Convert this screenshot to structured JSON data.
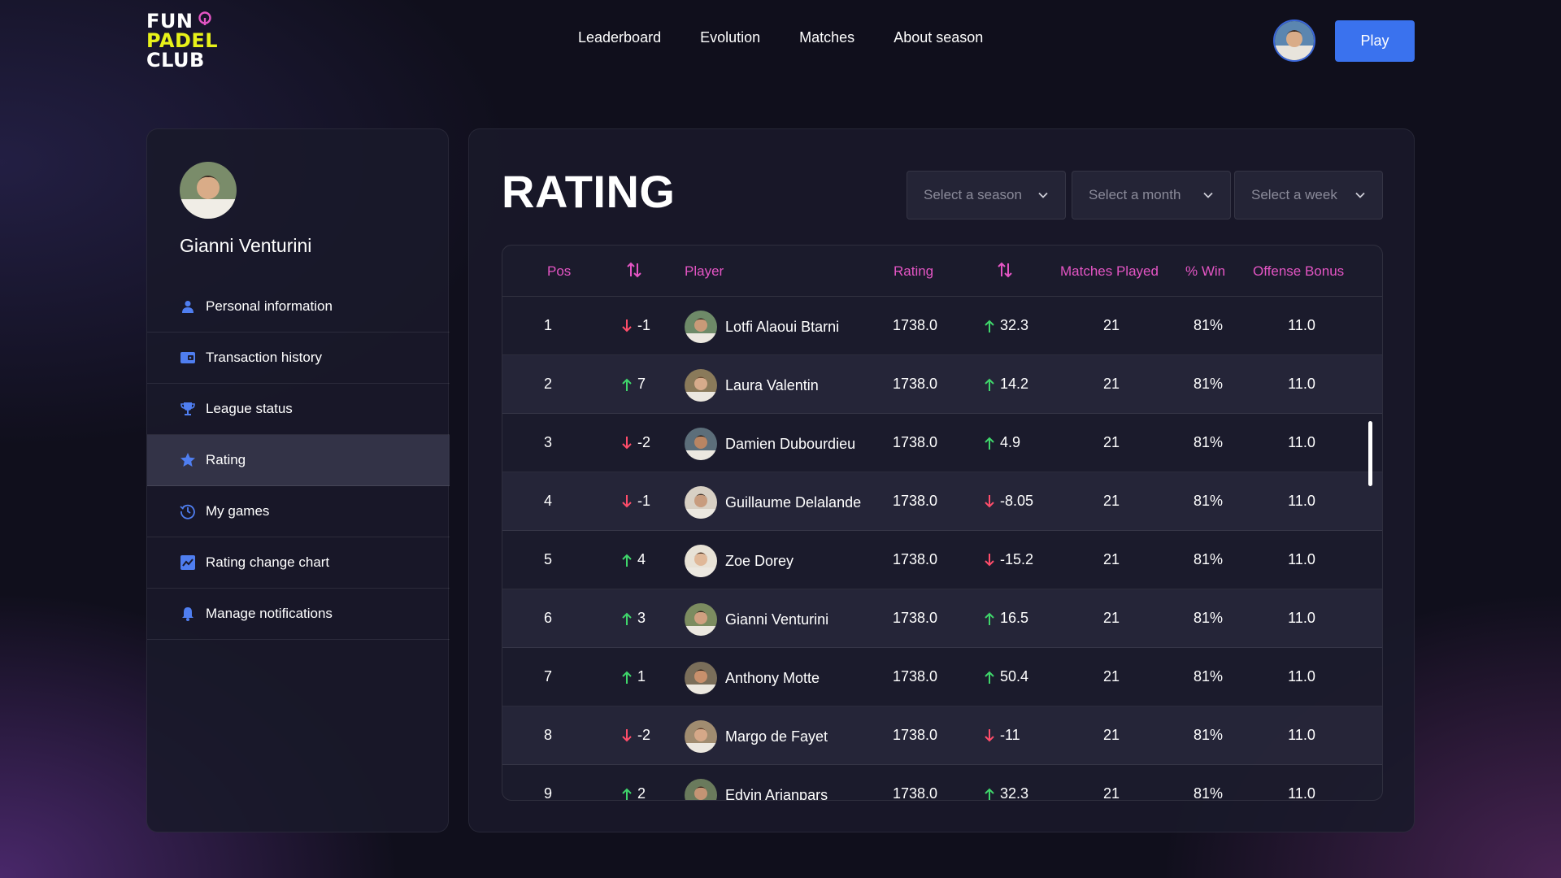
{
  "logo": {
    "line1": "FUN",
    "line2": "PADEL",
    "line3": "CLUB"
  },
  "nav": {
    "items": [
      "Leaderboard",
      "Evolution",
      "Matches",
      "About season"
    ]
  },
  "header": {
    "play_label": "Play"
  },
  "profile": {
    "name": "Gianni Venturini"
  },
  "menu": {
    "items": [
      {
        "label": "Personal information",
        "icon": "user-icon"
      },
      {
        "label": "Transaction history",
        "icon": "wallet-icon"
      },
      {
        "label": "League status",
        "icon": "trophy-icon"
      },
      {
        "label": "Rating",
        "icon": "star-badge-icon",
        "active": true
      },
      {
        "label": "My games",
        "icon": "history-icon"
      },
      {
        "label": "Rating change chart",
        "icon": "chart-icon"
      },
      {
        "label": "Manage notifications",
        "icon": "bell-icon"
      }
    ]
  },
  "page": {
    "title": "RATING"
  },
  "filters": {
    "season": "Select a season",
    "month": "Select a month",
    "week": "Select a week"
  },
  "table": {
    "headers": {
      "pos": "Pos",
      "player": "Player",
      "rating": "Rating",
      "matches": "Matches Played",
      "win": "% Win",
      "bonus": "Offense Bonus"
    },
    "rows": [
      {
        "pos": "1",
        "move_dir": "down",
        "move": "-1",
        "player": "Lotfi Alaoui Btarni",
        "rating": "1738.0",
        "delta_dir": "up",
        "delta": "32.3",
        "matches": "21",
        "win": "81%",
        "bonus": "11.0"
      },
      {
        "pos": "2",
        "move_dir": "up",
        "move": "7",
        "player": "Laura Valentin",
        "rating": "1738.0",
        "delta_dir": "up",
        "delta": "14.2",
        "matches": "21",
        "win": "81%",
        "bonus": "11.0"
      },
      {
        "pos": "3",
        "move_dir": "down",
        "move": "-2",
        "player": "Damien Dubourdieu",
        "rating": "1738.0",
        "delta_dir": "up",
        "delta": "4.9",
        "matches": "21",
        "win": "81%",
        "bonus": "11.0"
      },
      {
        "pos": "4",
        "move_dir": "down",
        "move": "-1",
        "player": "Guillaume Delalande",
        "rating": "1738.0",
        "delta_dir": "down",
        "delta": "-8.05",
        "matches": "21",
        "win": "81%",
        "bonus": "11.0"
      },
      {
        "pos": "5",
        "move_dir": "up",
        "move": "4",
        "player": "Zoe Dorey",
        "rating": "1738.0",
        "delta_dir": "down",
        "delta": "-15.2",
        "matches": "21",
        "win": "81%",
        "bonus": "11.0"
      },
      {
        "pos": "6",
        "move_dir": "up",
        "move": "3",
        "player": "Gianni Venturini",
        "rating": "1738.0",
        "delta_dir": "up",
        "delta": "16.5",
        "matches": "21",
        "win": "81%",
        "bonus": "11.0"
      },
      {
        "pos": "7",
        "move_dir": "up",
        "move": "1",
        "player": "Anthony Motte",
        "rating": "1738.0",
        "delta_dir": "up",
        "delta": "50.4",
        "matches": "21",
        "win": "81%",
        "bonus": "11.0"
      },
      {
        "pos": "8",
        "move_dir": "down",
        "move": "-2",
        "player": "Margo de Fayet",
        "rating": "1738.0",
        "delta_dir": "down",
        "delta": "-11",
        "matches": "21",
        "win": "81%",
        "bonus": "11.0"
      },
      {
        "pos": "9",
        "move_dir": "up",
        "move": "2",
        "player": "Edvin Arianpars",
        "rating": "1738.0",
        "delta_dir": "up",
        "delta": "32.3",
        "matches": "21",
        "win": "81%",
        "bonus": "11.0"
      }
    ]
  },
  "colors": {
    "accent": "#3a72ee",
    "header_text": "#e455c4",
    "up": "#3fd66b",
    "down": "#ff4d6a",
    "logo_yellow": "#e8f219"
  }
}
